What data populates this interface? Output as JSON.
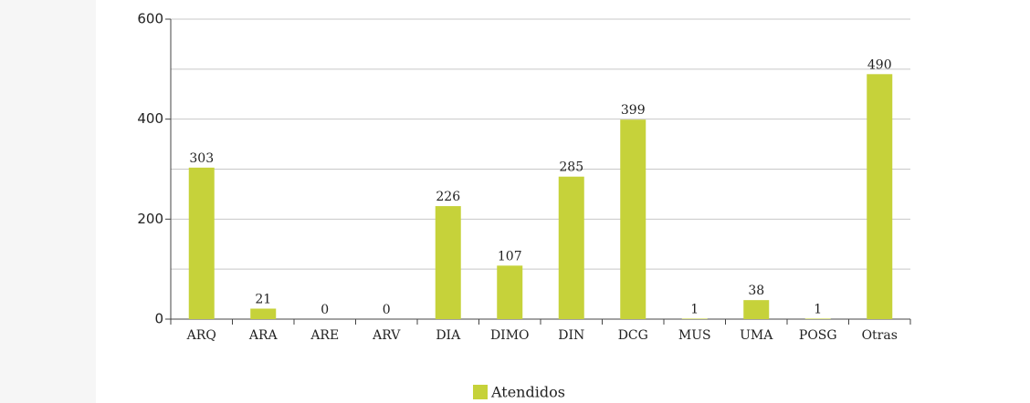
{
  "chart_data": {
    "type": "bar",
    "categories": [
      "ARQ",
      "ARA",
      "ARE",
      "ARV",
      "DIA",
      "DIMO",
      "DIN",
      "DCG",
      "MUS",
      "UMA",
      "POSG",
      "Otras"
    ],
    "series": [
      {
        "name": "Atendidos",
        "color": "#c6d23a",
        "values": [
          303,
          21,
          0,
          0,
          226,
          107,
          285,
          399,
          1,
          38,
          1,
          490
        ]
      }
    ],
    "ylim": [
      0,
      600
    ],
    "yticks": [
      0,
      200,
      400,
      600
    ],
    "minor_yticks": [
      100,
      300,
      500
    ],
    "grid": true,
    "legend": "bottom"
  }
}
